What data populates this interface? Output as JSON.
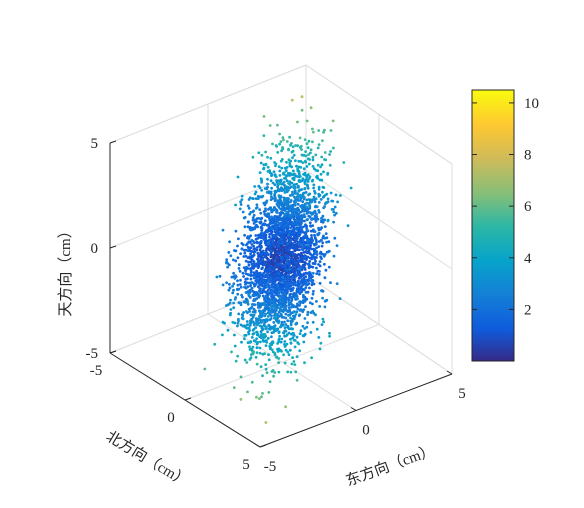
{
  "chart_data": {
    "type": "scatter",
    "dimensions": 3,
    "title": "",
    "xlabel": "东方向（cm）",
    "ylabel": "北方向（cm）",
    "zlabel": "天方向（cm）",
    "xlim": [
      -5,
      5
    ],
    "ylim": [
      -5,
      5
    ],
    "zlim": [
      -5,
      5
    ],
    "x_ticks": [
      "-5",
      "0",
      "5"
    ],
    "y_ticks": [
      "-5",
      "0",
      "5"
    ],
    "z_ticks": [
      "-5",
      "0",
      "5"
    ],
    "grid": true,
    "colormap": "parula",
    "color_quantity": "3D distance from origin (cm)",
    "colorbar": {
      "range": [
        0,
        10.5
      ],
      "ticks": [
        "2",
        "4",
        "6",
        "8",
        "10"
      ],
      "placement": "right"
    },
    "distribution": {
      "description": "dense elongated cloud of points concentrated near the origin, extending from (east -3, north 3, up 3) to (east 4, north -4, up -4); color increases with distance from origin",
      "centroid": [
        0,
        0,
        0
      ],
      "principal_direction": [
        0.6,
        -0.55,
        -0.58
      ],
      "spread_along_principal_cm": 2.2,
      "spread_perpendicular_cm": 0.8,
      "n_points_approx": 8000
    },
    "colors": {
      "parula": [
        "#352a87",
        "#0f5cdd",
        "#1481d6",
        "#06a4ca",
        "#2eb7a4",
        "#87bf77",
        "#d1bb59",
        "#fec832",
        "#f9fb0e"
      ]
    }
  }
}
